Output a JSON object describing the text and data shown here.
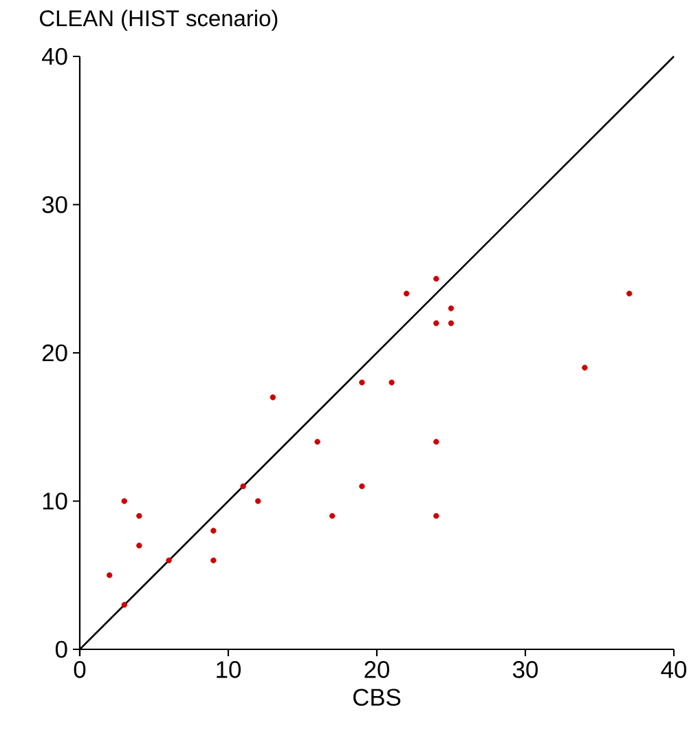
{
  "chart_data": {
    "type": "scatter",
    "title": "CLEAN (HIST scenario)",
    "xlabel": "CBS",
    "xlim": [
      0,
      40
    ],
    "ylim": [
      0,
      40
    ],
    "xticks": [
      0,
      10,
      20,
      30,
      40
    ],
    "yticks": [
      0,
      10,
      20,
      30,
      40
    ],
    "grid": false,
    "series": [
      {
        "marker": "circle",
        "color": "#cc0000",
        "x": [
          2,
          3,
          3,
          4,
          4,
          6,
          9,
          9,
          11,
          12,
          16,
          17,
          13,
          19,
          21,
          22,
          24,
          25,
          24,
          25,
          24,
          24,
          19,
          34,
          37
        ],
        "values": [
          5,
          10,
          3,
          9,
          7,
          6,
          8,
          6,
          11,
          10,
          14,
          9,
          17,
          18,
          18,
          24,
          25,
          23,
          22,
          22,
          14,
          9,
          11,
          19,
          24
        ]
      },
      {
        "type": "line",
        "color": "#000000",
        "x": [
          0,
          40
        ],
        "values": [
          0,
          40
        ],
        "line_style": "solid",
        "marker": "none"
      }
    ]
  }
}
